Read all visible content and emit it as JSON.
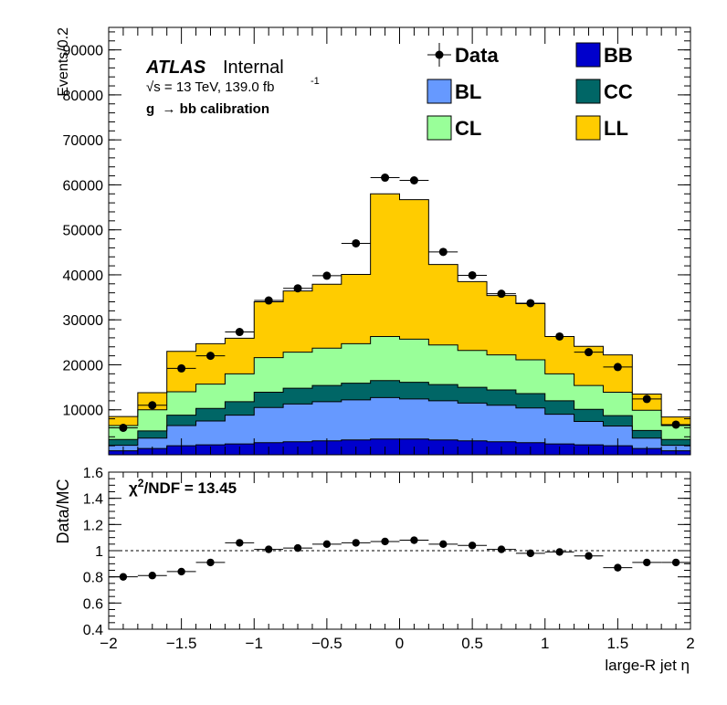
{
  "chart_data": [
    {
      "type": "area",
      "stacked": true,
      "ylabel": "Events/0.2",
      "ylim": [
        0,
        95000
      ],
      "y_ticks": [
        10000,
        20000,
        30000,
        40000,
        50000,
        60000,
        70000,
        80000,
        90000
      ],
      "y_tick_labels": [
        "10000",
        "20000",
        "30000",
        "40000",
        "50000",
        "60000",
        "70000",
        "80000",
        "90000"
      ],
      "xlim": [
        -2,
        2
      ],
      "bin_edges": [
        -2.0,
        -1.8,
        -1.6,
        -1.4,
        -1.2,
        -1.0,
        -0.8,
        -0.6,
        -0.4,
        -0.2,
        0.0,
        0.2,
        0.4,
        0.6,
        0.8,
        1.0,
        1.2,
        1.4,
        1.6,
        1.8,
        2.0
      ],
      "x": [
        -1.9,
        -1.7,
        -1.5,
        -1.3,
        -1.1,
        -0.9,
        -0.7,
        -0.5,
        -0.3,
        -0.1,
        0.1,
        0.3,
        0.5,
        0.7,
        0.9,
        1.1,
        1.3,
        1.5,
        1.7,
        1.9
      ],
      "series": [
        {
          "name": "BB",
          "color": "#0000cc",
          "values": [
            900,
            1400,
            2000,
            2200,
            2400,
            2700,
            2900,
            3100,
            3300,
            3500,
            3500,
            3300,
            3100,
            2900,
            2700,
            2400,
            2200,
            2000,
            1400,
            900
          ]
        },
        {
          "name": "BL",
          "color": "#6699ff",
          "values": [
            1200,
            2300,
            4500,
            5300,
            6400,
            7800,
            8400,
            8700,
            8900,
            9200,
            8900,
            8700,
            8400,
            8100,
            7700,
            6600,
            5200,
            4400,
            2300,
            1200
          ]
        },
        {
          "name": "CC",
          "color": "#006666",
          "values": [
            1300,
            1600,
            2300,
            2800,
            3000,
            3400,
            3500,
            3600,
            3700,
            3800,
            3700,
            3600,
            3500,
            3400,
            3200,
            3000,
            2700,
            2300,
            1700,
            1300
          ]
        },
        {
          "name": "CL",
          "color": "#99ff99",
          "values": [
            3100,
            4700,
            5200,
            5400,
            6200,
            7700,
            8000,
            8300,
            8800,
            9800,
            9600,
            8800,
            8200,
            7800,
            7500,
            6000,
            5300,
            5200,
            4500,
            3100
          ]
        },
        {
          "name": "LL",
          "color": "#ffcc00",
          "values": [
            2000,
            3800,
            9000,
            9000,
            7900,
            12400,
            13600,
            14200,
            15400,
            31700,
            31000,
            17900,
            15300,
            13200,
            12500,
            8300,
            8700,
            8300,
            3600,
            1900
          ]
        }
      ],
      "data_series": {
        "name": "Data",
        "values": [
          6000,
          11000,
          19200,
          22000,
          27300,
          34300,
          37000,
          39800,
          47000,
          61600,
          61000,
          45100,
          39900,
          35800,
          33700,
          26300,
          22800,
          19500,
          12400,
          6700
        ]
      },
      "legend": {
        "placement": "top-right",
        "entries": [
          "Data",
          "BB",
          "BL",
          "CC",
          "CL",
          "LL"
        ]
      },
      "annotations": {
        "atlas": "ATLAS",
        "atlas_suffix": "Internal",
        "energy": "√s = 13 TeV, 139.0 fb",
        "energy_sup": "-1",
        "selection": "g  → bb calibration"
      }
    },
    {
      "type": "scatter",
      "ylabel": "Data/MC",
      "xlabel": "large-R jet η",
      "xlim": [
        -2,
        2
      ],
      "ylim": [
        0.4,
        1.6
      ],
      "y_ticks": [
        0.4,
        0.6,
        0.8,
        1.0,
        1.2,
        1.4,
        1.6
      ],
      "y_tick_labels": [
        "0.4",
        "0.6",
        "0.8",
        "1",
        "1.2",
        "1.4",
        "1.6"
      ],
      "x_ticks": [
        -2,
        -1.5,
        -1,
        -0.5,
        0,
        0.5,
        1,
        1.5,
        2
      ],
      "x_tick_labels": [
        "−2",
        "−1.5",
        "−1",
        "−0.5",
        "0",
        "0.5",
        "1",
        "1.5",
        "2"
      ],
      "x": [
        -1.9,
        -1.7,
        -1.5,
        -1.3,
        -1.1,
        -0.9,
        -0.7,
        -0.5,
        -0.3,
        -0.1,
        0.1,
        0.3,
        0.5,
        0.7,
        0.9,
        1.1,
        1.3,
        1.5,
        1.7,
        1.9
      ],
      "values": [
        0.8,
        0.81,
        0.84,
        0.91,
        1.06,
        1.01,
        1.02,
        1.05,
        1.06,
        1.07,
        1.08,
        1.05,
        1.04,
        1.01,
        0.98,
        0.99,
        0.96,
        0.87,
        0.91,
        0.91
      ],
      "reference_line": 1.0,
      "annotation": {
        "chi": "χ",
        "chi_sup": "2",
        "rest": "/NDF = 13.45"
      }
    }
  ]
}
